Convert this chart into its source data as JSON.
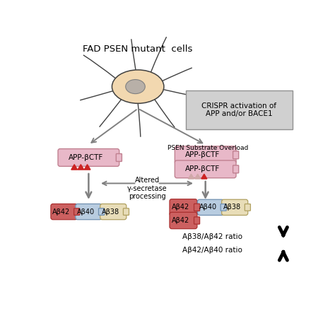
{
  "title": "FAD PSEN mutant  cells",
  "bg_color": "#ffffff",
  "cell_body_color": "#f2d8b0",
  "cell_nucleus_color": "#b8b0a8",
  "arrow_color": "#808080",
  "crispr_box_color": "#cccccc",
  "crispr_text": "CRISPR activation of\nAPP and/or BACE1",
  "psen_text": "PSEN Substrate Overload",
  "app_bctf_color": "#e8b8c8",
  "app_bctf_border": "#c08090",
  "ab42_color": "#cc6060",
  "ab42_border": "#aa3030",
  "ab40_color": "#b8cce0",
  "ab40_border": "#7090b0",
  "ab38_color": "#e8ddb8",
  "ab38_border": "#b0a060",
  "triangle_red": "#cc2222",
  "triangle_light": "#d0a8a8",
  "altered_text": "Altered\nγ-secretase\nprocessing",
  "ratio1_text": "Aβ38/Aβ42 ratio",
  "ratio2_text": "Aβ42/Aβ40 ratio",
  "neuron_spikes": [
    [
      [
        0.38,
        0.18
      ],
      [
        0.62,
        0.62
      ]
    ],
    [
      [
        0.28,
        0.08
      ],
      [
        0.52,
        0.5
      ]
    ],
    [
      [
        0.22,
        0.05
      ],
      [
        0.45,
        0.42
      ]
    ],
    [
      [
        0.28,
        0.12
      ],
      [
        0.38,
        0.22
      ]
    ],
    [
      [
        0.42,
        0.35
      ],
      [
        0.28,
        0.1
      ]
    ],
    [
      [
        0.55,
        0.62
      ],
      [
        0.3,
        0.12
      ]
    ],
    [
      [
        0.65,
        0.78
      ],
      [
        0.38,
        0.3
      ]
    ],
    [
      [
        0.68,
        0.85
      ],
      [
        0.52,
        0.55
      ]
    ],
    [
      [
        0.62,
        0.72
      ],
      [
        0.68,
        0.82
      ]
    ],
    [
      [
        0.48,
        0.52
      ],
      [
        0.72,
        0.9
      ]
    ]
  ]
}
